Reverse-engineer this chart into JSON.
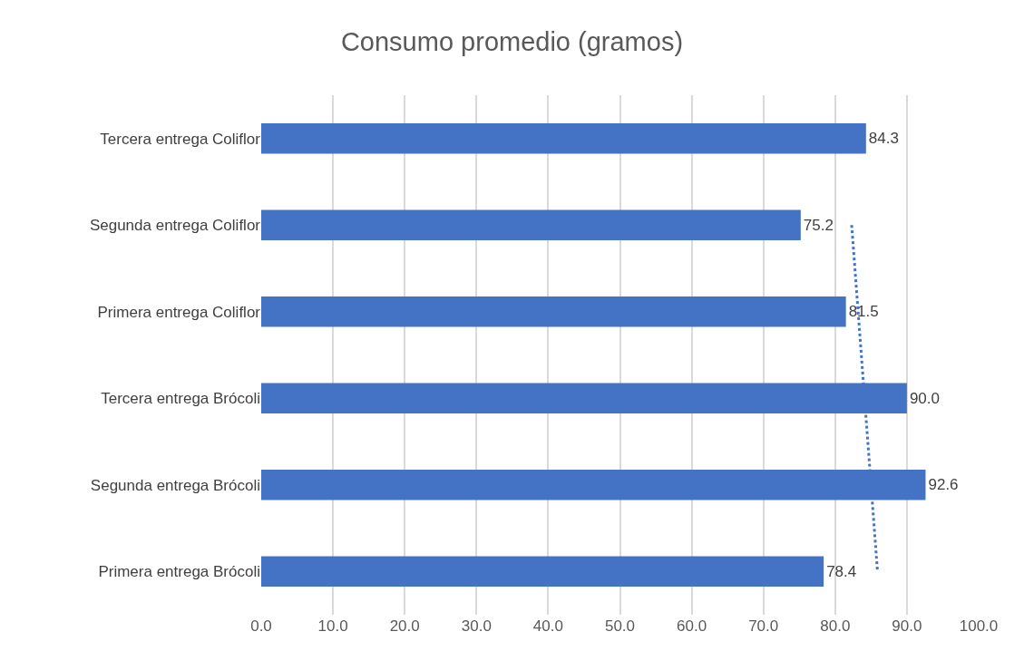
{
  "chart_data": {
    "type": "bar",
    "orientation": "horizontal",
    "title": "Consumo promedio (gramos)",
    "categories": [
      "Tercera entrega Coliflor",
      "Segunda entrega Coliflor",
      "Primera entrega Coliflor",
      "Tercera entrega Brócoli",
      "Segunda entrega Brócoli",
      "Primera entrega Brócoli"
    ],
    "series": [
      {
        "color": "#4472c4",
        "values": [
          84.3,
          75.2,
          81.5,
          90.0,
          92.6,
          78.4
        ],
        "value_labels": [
          "84.3",
          "75.2",
          "81.5",
          "90.0",
          "92.6",
          "78.4"
        ]
      },
      {
        "type": "line",
        "line_style": "dotted",
        "color": "#4472c4",
        "values": [
          null,
          82.3,
          83.2,
          84.1,
          85.0,
          85.9
        ]
      }
    ],
    "xlim": [
      0,
      100
    ],
    "xticks": [
      {
        "value": 0,
        "label": "0.0"
      },
      {
        "value": 10,
        "label": "10.0"
      },
      {
        "value": 20,
        "label": "20.0"
      },
      {
        "value": 30,
        "label": "30.0"
      },
      {
        "value": 40,
        "label": "40.0"
      },
      {
        "value": 50,
        "label": "50.0"
      },
      {
        "value": 60,
        "label": "60.0"
      },
      {
        "value": 70,
        "label": "70.0"
      },
      {
        "value": 80,
        "label": "80.0"
      },
      {
        "value": 90,
        "label": "90.0"
      },
      {
        "value": 100,
        "label": "100.0"
      }
    ],
    "grid": "x"
  }
}
